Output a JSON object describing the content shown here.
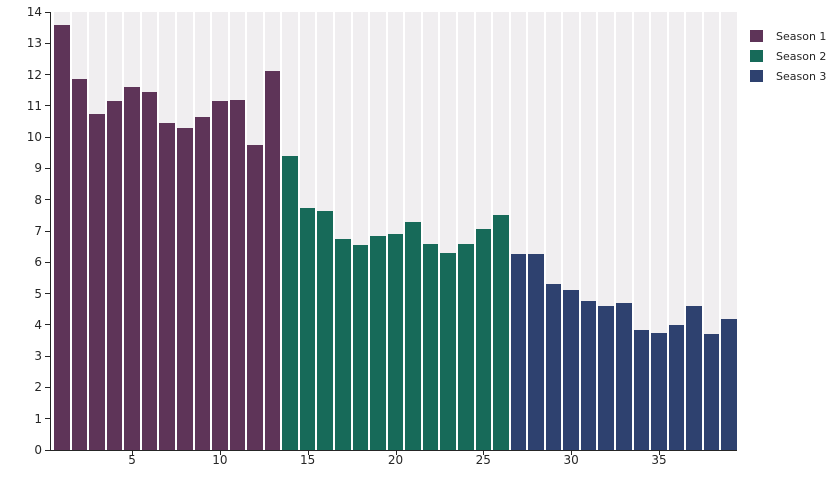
{
  "chart_data": {
    "type": "bar",
    "title": "",
    "xlabel": "",
    "ylabel": "",
    "x_unit": "episode",
    "ylim": [
      0,
      14
    ],
    "yticks": [
      0,
      1,
      2,
      3,
      4,
      5,
      6,
      7,
      8,
      9,
      10,
      11,
      12,
      13,
      14
    ],
    "xticks": [
      5,
      10,
      15,
      20,
      25,
      30,
      35
    ],
    "n_bars": 39,
    "grid": false,
    "slot_band_color": "#f0eef0",
    "axis_color": "#262626",
    "legend_position": "top-right",
    "series": [
      {
        "name": "Season 1",
        "color": "#5e3458",
        "x_start": 1,
        "values": [
          13.6,
          11.85,
          10.75,
          11.15,
          11.6,
          11.45,
          10.45,
          10.3,
          10.65,
          11.15,
          11.2,
          9.75,
          12.1
        ]
      },
      {
        "name": "Season 2",
        "color": "#176a59",
        "x_start": 14,
        "values": [
          9.4,
          7.75,
          7.65,
          6.75,
          6.55,
          6.85,
          6.9,
          7.3,
          6.6,
          6.3,
          6.6,
          7.05,
          7.5
        ]
      },
      {
        "name": "Season 3",
        "color": "#2e416f",
        "x_start": 27,
        "values": [
          6.25,
          6.25,
          5.3,
          5.1,
          4.75,
          4.6,
          4.7,
          3.85,
          3.75,
          4.0,
          4.6,
          3.7,
          4.2
        ]
      }
    ]
  }
}
